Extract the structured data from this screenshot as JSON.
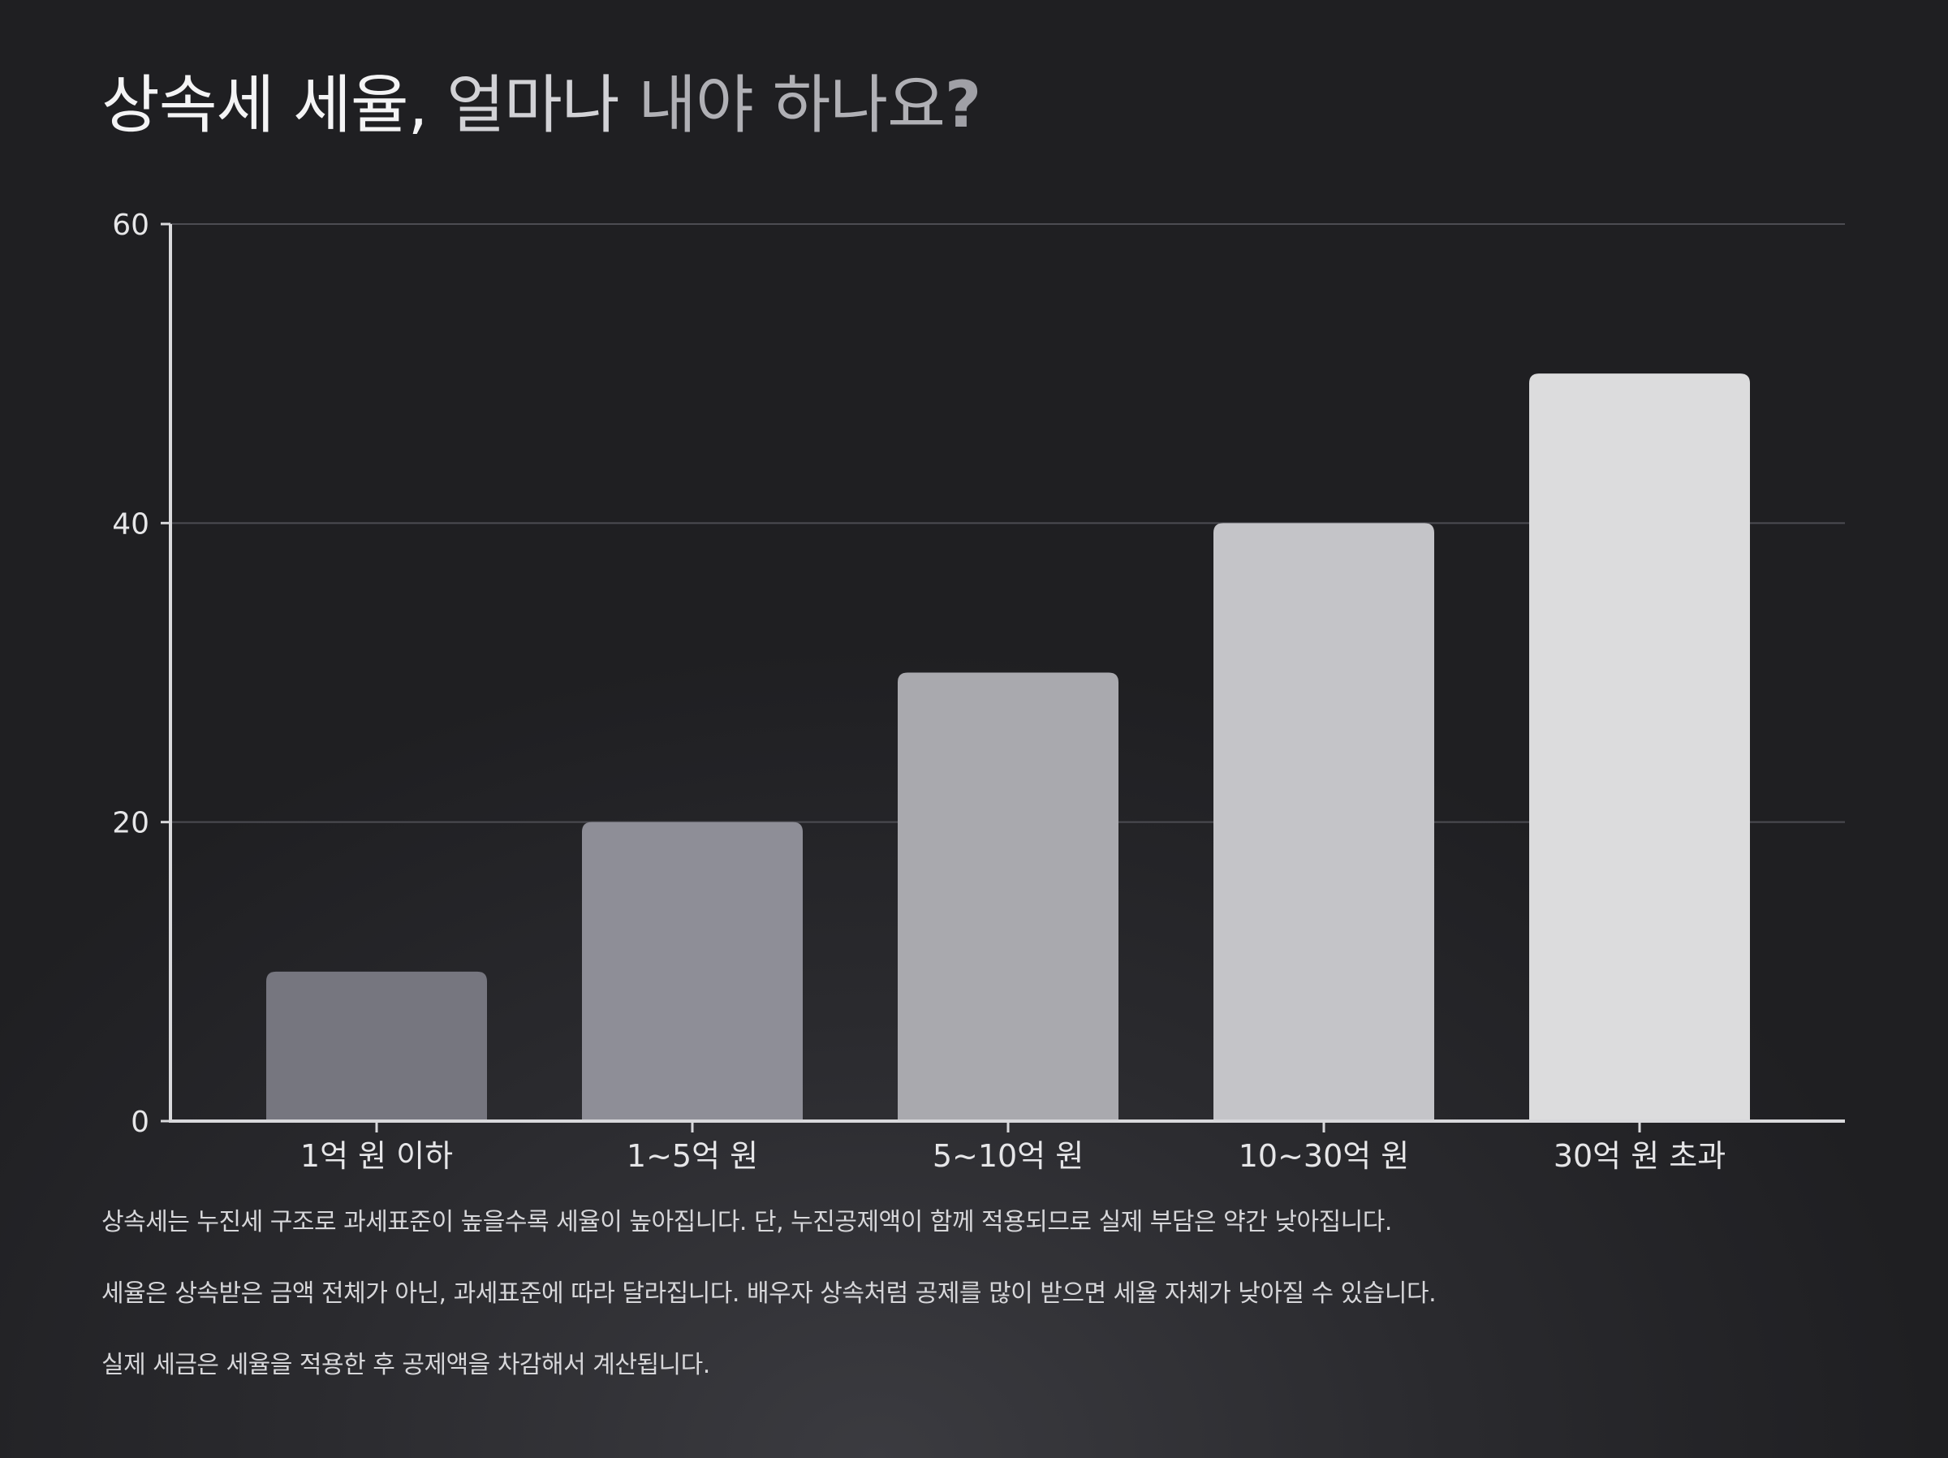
{
  "title": {
    "part1": "상속세 세율, ",
    "part2": "얼마나 ",
    "part3": "내야 하나요",
    "part4": "?"
  },
  "chart_data": {
    "type": "bar",
    "title": "상속세 세율, 얼마나 내야 하나요?",
    "categories": [
      "1억 원 이하",
      "1~5억 원",
      "5~10억 원",
      "10~30억 원",
      "30억 원 초과"
    ],
    "values": [
      10,
      20,
      30,
      40,
      50
    ],
    "bar_colors": [
      "#76767f",
      "#8e8e97",
      "#a9a9ae",
      "#c4c4c8",
      "#dcdcdd"
    ],
    "ylim": [
      0,
      60
    ],
    "yticks": [
      0,
      20,
      40,
      60
    ],
    "ytick_labels": [
      "0",
      "20",
      "40",
      "60"
    ],
    "xlabel": "",
    "ylabel": "",
    "grid": true
  },
  "notes": [
    "상속세는 누진세 구조로 과세표준이 높을수록 세율이 높아집니다. 단, 누진공제액이 함께 적용되므로 실제 부담은 약간 낮아집니다.",
    "세율은 상속받은 금액 전체가 아닌, 과세표준에 따라 달라집니다. 배우자 상속처럼 공제를 많이 받으면 세율 자체가 낮아질 수 있습니다.",
    "실제 세금은 세율을 적용한 후 공제액을 차감해서 계산됩니다."
  ],
  "colors": {
    "axis": "#d9d9dc",
    "grid": "#4c4c52",
    "text": "#e6e6e8"
  }
}
